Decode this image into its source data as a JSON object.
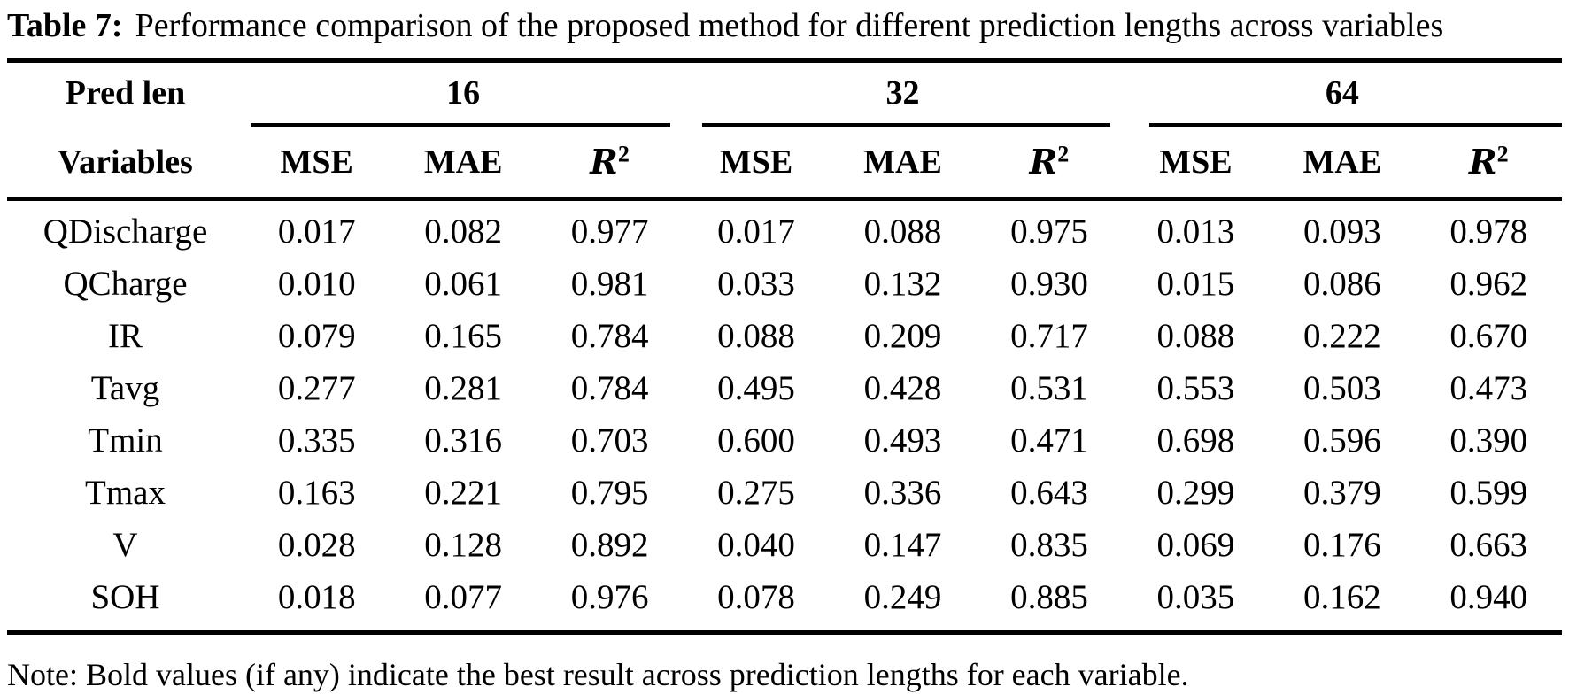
{
  "caption": {
    "label": "Table 7:",
    "text": "Performance comparison of the proposed method for different prediction lengths across variables"
  },
  "table": {
    "pred_len_label": "Pred len",
    "variables_label": "Variables",
    "groups": [
      {
        "length": "16"
      },
      {
        "length": "32"
      },
      {
        "length": "64"
      }
    ],
    "metrics": {
      "mse": "MSE",
      "mae": "MAE",
      "r_base": "R",
      "r_sup": "2"
    },
    "rows": [
      {
        "variable": "QDischarge",
        "values": [
          "0.017",
          "0.082",
          "0.977",
          "0.017",
          "0.088",
          "0.975",
          "0.013",
          "0.093",
          "0.978"
        ]
      },
      {
        "variable": "QCharge",
        "values": [
          "0.010",
          "0.061",
          "0.981",
          "0.033",
          "0.132",
          "0.930",
          "0.015",
          "0.086",
          "0.962"
        ]
      },
      {
        "variable": "IR",
        "values": [
          "0.079",
          "0.165",
          "0.784",
          "0.088",
          "0.209",
          "0.717",
          "0.088",
          "0.222",
          "0.670"
        ]
      },
      {
        "variable": "Tavg",
        "values": [
          "0.277",
          "0.281",
          "0.784",
          "0.495",
          "0.428",
          "0.531",
          "0.553",
          "0.503",
          "0.473"
        ]
      },
      {
        "variable": "Tmin",
        "values": [
          "0.335",
          "0.316",
          "0.703",
          "0.600",
          "0.493",
          "0.471",
          "0.698",
          "0.596",
          "0.390"
        ]
      },
      {
        "variable": "Tmax",
        "values": [
          "0.163",
          "0.221",
          "0.795",
          "0.275",
          "0.336",
          "0.643",
          "0.299",
          "0.379",
          "0.599"
        ]
      },
      {
        "variable": "V",
        "values": [
          "0.028",
          "0.128",
          "0.892",
          "0.040",
          "0.147",
          "0.835",
          "0.069",
          "0.176",
          "0.663"
        ]
      },
      {
        "variable": "SOH",
        "values": [
          "0.018",
          "0.077",
          "0.976",
          "0.078",
          "0.249",
          "0.885",
          "0.035",
          "0.162",
          "0.940"
        ]
      }
    ]
  },
  "note": "Note: Bold values (if any) indicate the best result across prediction lengths for each variable.",
  "colors": {
    "text": "#000000",
    "background": "#ffffff",
    "rule": "#000000"
  }
}
